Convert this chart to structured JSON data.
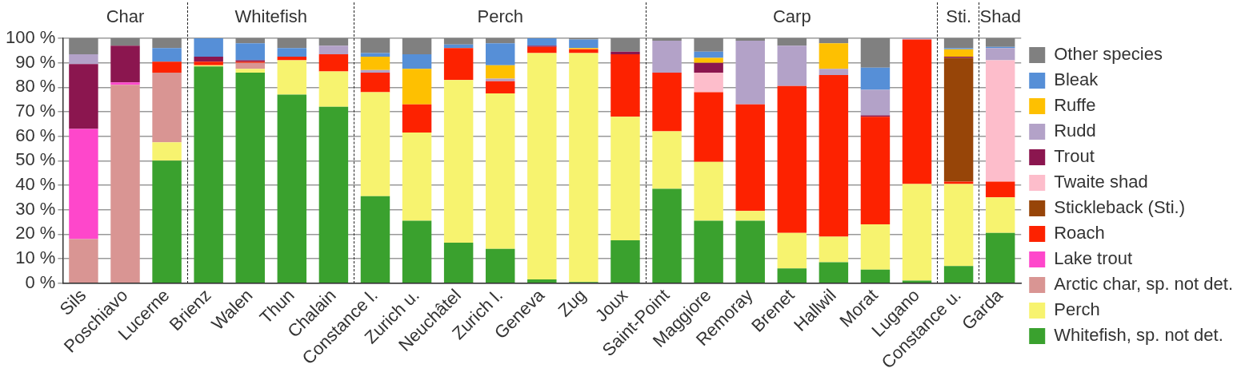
{
  "chart_data": {
    "type": "bar",
    "stacked": true,
    "grid": "y",
    "legend": "right",
    "categories": [
      "Sils",
      "Poschiavo",
      "Lucerne",
      "Brienz",
      "Walen",
      "Thun",
      "Chalain",
      "Constance l.",
      "Zurich u.",
      "Neuchâtel",
      "Zurich l.",
      "Geneva",
      "Zug",
      "Joux",
      "Saint-Point",
      "Maggiore",
      "Remoray",
      "Brenet",
      "Hallwil",
      "Morat",
      "Lugano",
      "Constance u.",
      "Garda"
    ],
    "ylim": [
      0,
      100
    ],
    "yticks": [
      {
        "value": 0,
        "label": "0 %"
      },
      {
        "value": 10,
        "label": "10 %"
      },
      {
        "value": 20,
        "label": "20 %"
      },
      {
        "value": 30,
        "label": "30 %"
      },
      {
        "value": 40,
        "label": "40 %"
      },
      {
        "value": 50,
        "label": "50 %"
      },
      {
        "value": 60,
        "label": "60 %"
      },
      {
        "value": 70,
        "label": "70 %"
      },
      {
        "value": 80,
        "label": "80 %"
      },
      {
        "value": 90,
        "label": "90 %"
      },
      {
        "value": 100,
        "label": "100 %"
      }
    ],
    "annotations": [
      "Char",
      "Whitefish",
      "Perch",
      "Carp",
      "Sti.",
      "Shad"
    ],
    "series": [
      {
        "name": "Whitefish, sp. not det.",
        "color": "#3aa12e",
        "values": [
          0,
          0,
          50,
          88.5,
          86,
          77,
          72,
          35.5,
          25.5,
          16.5,
          14,
          1.5,
          0.5,
          17.5,
          38.5,
          25.5,
          25.5,
          6,
          8.5,
          5.5,
          1,
          7,
          20.5
        ]
      },
      {
        "name": "Perch",
        "color": "#f7f36f",
        "values": [
          0,
          0,
          7.5,
          0.5,
          1.5,
          14,
          14.5,
          42.5,
          36,
          66.5,
          63.5,
          92.5,
          93.5,
          50.5,
          23.5,
          24,
          4,
          14.5,
          10.5,
          18.5,
          39.5,
          33.5,
          14.5
        ]
      },
      {
        "name": "Arctic char, sp. not det.",
        "color": "#d99593",
        "values": [
          18,
          81,
          28.5,
          0,
          2.5,
          0,
          0,
          0,
          0,
          0,
          0,
          0,
          0,
          0,
          0,
          0,
          0,
          0,
          0,
          0,
          0,
          0,
          0
        ]
      },
      {
        "name": "Lake trout",
        "color": "#fe47cb",
        "values": [
          45,
          1,
          0,
          0,
          0,
          0,
          0,
          0,
          0,
          0,
          0,
          0,
          0,
          0,
          0,
          0,
          0,
          0,
          0,
          0,
          0,
          0,
          0
        ]
      },
      {
        "name": "Roach",
        "color": "#fd2200",
        "values": [
          0,
          0,
          4.5,
          1.5,
          0.5,
          1.5,
          7,
          8,
          11.5,
          13,
          5,
          2.5,
          1.5,
          25.5,
          24,
          28.5,
          43.5,
          60,
          66,
          44,
          59,
          1,
          6.5
        ]
      },
      {
        "name": "Stickleback (Sti.)",
        "color": "#974508",
        "values": [
          0,
          0,
          0,
          0,
          0,
          0,
          0,
          0,
          0,
          0,
          0,
          0,
          0,
          0,
          0,
          0,
          0,
          0,
          0,
          0,
          0,
          50.5,
          0
        ]
      },
      {
        "name": "Twaite shad",
        "color": "#fdbdcb",
        "values": [
          0,
          0,
          0,
          0,
          0,
          0,
          0,
          0,
          0,
          0,
          0,
          0,
          0,
          0,
          0,
          8,
          0,
          0,
          0,
          0,
          0,
          0,
          49.5
        ]
      },
      {
        "name": "Trout",
        "color": "#8b164f",
        "values": [
          26.5,
          15,
          0,
          2,
          0.5,
          0,
          0,
          0,
          0,
          0,
          0,
          0.5,
          0,
          1,
          0,
          4,
          0,
          0,
          0,
          0.5,
          0,
          0.5,
          0
        ]
      },
      {
        "name": "Rudd",
        "color": "#b3a2c8",
        "values": [
          4,
          0,
          0,
          0,
          0,
          0,
          3.5,
          1,
          0,
          0,
          1,
          0,
          0,
          0,
          13,
          0,
          26,
          16.5,
          2.5,
          10.5,
          0.5,
          0,
          5
        ]
      },
      {
        "name": "Ruffe",
        "color": "#fec001",
        "values": [
          0,
          0,
          0,
          0,
          0,
          0,
          0,
          5.5,
          14.5,
          0,
          5.5,
          0,
          0.5,
          0,
          0,
          2,
          0,
          0,
          10.5,
          0,
          0,
          3,
          0
        ]
      },
      {
        "name": "Bleak",
        "color": "#568fd7",
        "values": [
          0,
          0,
          5.5,
          7.5,
          7,
          3.5,
          0,
          1.5,
          6,
          1.5,
          9,
          3,
          3.5,
          0,
          0,
          2.5,
          0,
          0,
          0,
          9,
          0,
          0.5,
          0.5
        ]
      },
      {
        "name": "Other species",
        "color": "#808080",
        "values": [
          6.5,
          3,
          4,
          0,
          2,
          4,
          3,
          6,
          6.5,
          2.5,
          2,
          0,
          0.5,
          5.5,
          1,
          5.5,
          1,
          3,
          2,
          12,
          0,
          4,
          3.5
        ]
      }
    ]
  }
}
